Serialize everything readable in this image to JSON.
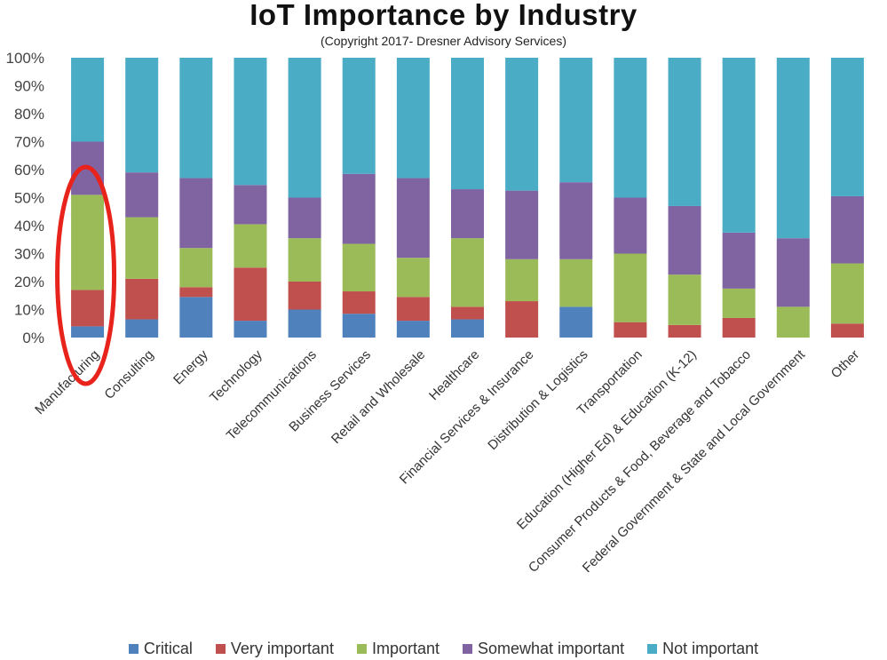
{
  "chart_data": {
    "type": "bar",
    "stacked": true,
    "title": "IoT Importance by Industry",
    "subtitle": "(Copyright 2017- Dresner Advisory Services)",
    "xlabel": "",
    "ylabel": "",
    "ylim": [
      0,
      100
    ],
    "yticks": [
      "0%",
      "10%",
      "20%",
      "30%",
      "40%",
      "50%",
      "60%",
      "70%",
      "80%",
      "90%",
      "100%"
    ],
    "grid": false,
    "legend_position": "bottom",
    "categories": [
      "Manufacturing",
      "Consulting",
      "Energy",
      "Technology",
      "Telecommunications",
      "Business Services",
      "Retail and Wholesale",
      "Healthcare",
      "Financial Services & Insurance",
      "Distribution & Logistics",
      "Transportation",
      "Education (Higher Ed) & Education (K-12)",
      "Consumer Products & Food, Beverage and Tobacco",
      "Federal Government & State and Local Government",
      "Other"
    ],
    "series": [
      {
        "name": "Critical",
        "color": "#4f81bd",
        "values": [
          4,
          6.5,
          14.5,
          6,
          10,
          8.5,
          6,
          6.5,
          0,
          11,
          0,
          0,
          0,
          0,
          0
        ]
      },
      {
        "name": "Very important",
        "color": "#c0504d",
        "values": [
          13,
          14.5,
          3.5,
          19,
          10,
          8,
          8.5,
          4.5,
          13,
          0,
          5.5,
          4.5,
          7,
          0,
          5
        ]
      },
      {
        "name": "Important",
        "color": "#9bbb59",
        "values": [
          34,
          22,
          14,
          15.5,
          15.5,
          17,
          14,
          24.5,
          15,
          17,
          24.5,
          18,
          10.5,
          11,
          21.5
        ]
      },
      {
        "name": "Somewhat important",
        "color": "#8064a2",
        "values": [
          19,
          16,
          25,
          14,
          14.5,
          25,
          28.5,
          17.5,
          24.5,
          27.5,
          20,
          24.5,
          20,
          24.5,
          24
        ]
      },
      {
        "name": "Not important",
        "color": "#4bacc6",
        "values": [
          30,
          41,
          43,
          45.5,
          50,
          41.5,
          43,
          47,
          47.5,
          44.5,
          50,
          53,
          62.5,
          64.5,
          49.5
        ]
      }
    ],
    "annotation": {
      "type": "ellipse",
      "target": "Manufacturing",
      "color": "#e8231b"
    }
  }
}
